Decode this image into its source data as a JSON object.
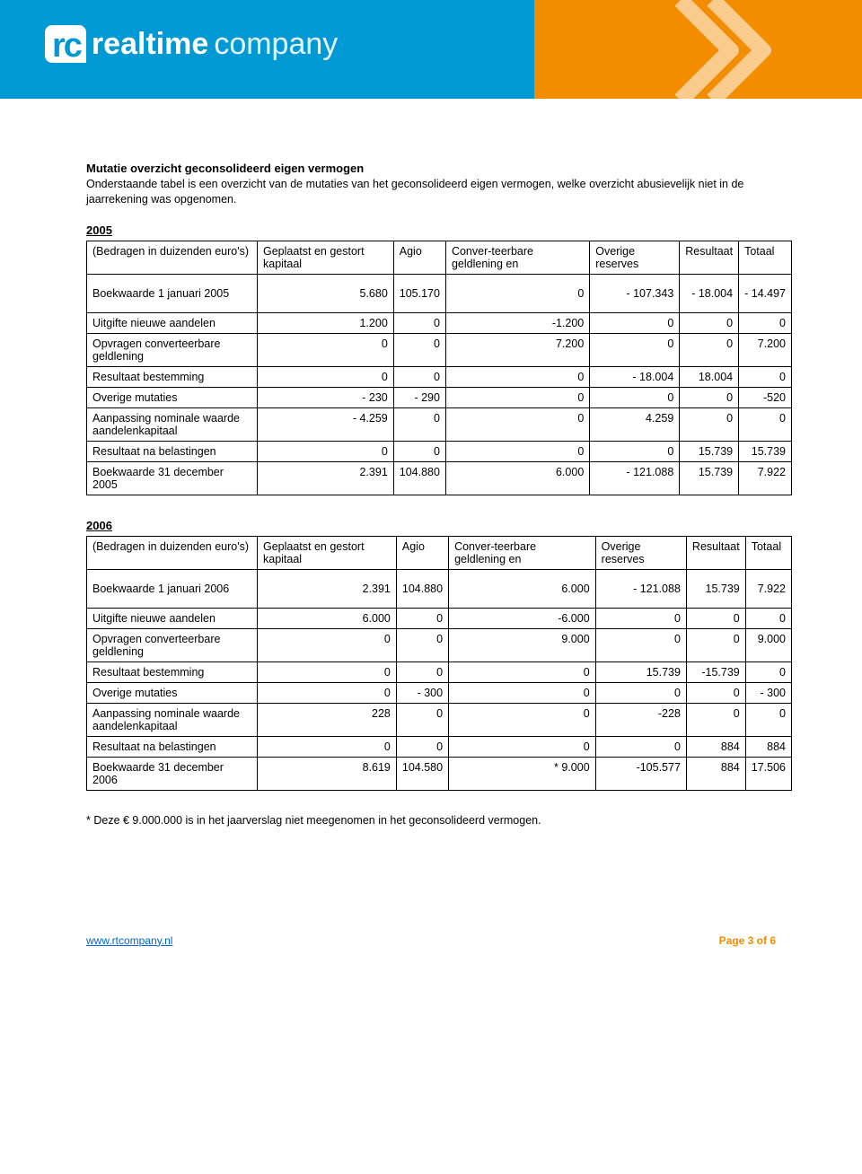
{
  "brand": {
    "prefix": "rc",
    "word1": "realtime",
    "word2": "company"
  },
  "title": "Mutatie overzicht geconsolideerd eigen vermogen",
  "intro": "Onderstaande tabel is een overzicht  van de mutaties van het geconsolideerd  eigen vermogen, welke overzicht abusievelijk niet in de jaarrekening was  opgenomen.",
  "columns": {
    "rowhead": "(Bedragen in duizenden euro's)",
    "c1": "Geplaatst en gestort kapitaal",
    "c2": "Agio",
    "c3": "Conver-teerbare geldlening en",
    "c4": "Overige reserves",
    "c5": "Resultaat",
    "c6": "Totaal"
  },
  "table2005": {
    "year": "2005",
    "rows": [
      {
        "label": "Boekwaarde 1 januari 2005",
        "v": [
          "5.680",
          "105.170",
          "0",
          "- 107.343",
          "- 18.004",
          "- 14.497"
        ],
        "pad": true
      },
      {
        "label": "Uitgifte nieuwe aandelen",
        "v": [
          "1.200",
          "0",
          "-1.200",
          "0",
          "0",
          "0"
        ]
      },
      {
        "label": "Opvragen converteerbare geldlening",
        "v": [
          "0",
          "0",
          "7.200",
          "0",
          "0",
          "7.200"
        ]
      },
      {
        "label": "Resultaat bestemming",
        "v": [
          "0",
          "0",
          "0",
          "- 18.004",
          "18.004",
          "0"
        ]
      },
      {
        "label": "Overige mutaties",
        "v": [
          "- 230",
          "- 290",
          "0",
          "0",
          "0",
          "-520"
        ]
      },
      {
        "label": "Aanpassing nominale waarde aandelenkapitaal",
        "v": [
          "- 4.259",
          "0",
          "0",
          "4.259",
          "0",
          "0"
        ]
      },
      {
        "label": "Resultaat na belastingen",
        "v": [
          "0",
          "0",
          "0",
          "0",
          "15.739",
          "15.739"
        ]
      },
      {
        "label": "Boekwaarde 31 december 2005",
        "v": [
          "2.391",
          "104.880",
          "6.000",
          "- 121.088",
          "15.739",
          "7.922"
        ]
      }
    ]
  },
  "table2006": {
    "year": "2006",
    "rows": [
      {
        "label": "Boekwaarde 1 januari 2006",
        "v": [
          "2.391",
          "104.880",
          "6.000",
          "- 121.088",
          "15.739",
          "7.922"
        ],
        "pad": true
      },
      {
        "label": "Uitgifte nieuwe aandelen",
        "v": [
          "6.000",
          "0",
          "-6.000",
          "0",
          "0",
          "0"
        ]
      },
      {
        "label": "Opvragen converteerbare geldlening",
        "v": [
          "0",
          "0",
          "9.000",
          "0",
          "0",
          "9.000"
        ]
      },
      {
        "label": "Resultaat bestemming",
        "v": [
          "0",
          "0",
          "0",
          "15.739",
          "-15.739",
          "0"
        ]
      },
      {
        "label": "Overige mutaties",
        "v": [
          "0",
          "- 300",
          "0",
          "0",
          "0",
          "- 300"
        ]
      },
      {
        "label": "Aanpassing nominale waarde aandelenkapitaal",
        "v": [
          "228",
          "0",
          "0",
          "-228",
          "0",
          "0"
        ]
      },
      {
        "label": "Resultaat na belastingen",
        "v": [
          "0",
          "0",
          "0",
          "0",
          "884",
          "884"
        ]
      },
      {
        "label": "Boekwaarde 31 december 2006",
        "v": [
          "8.619",
          "104.580",
          "*  9.000",
          "-105.577",
          "884",
          "17.506"
        ]
      }
    ]
  },
  "footnote": "* Deze € 9.000.000 is in het jaarverslag niet meegenomen in het geconsolideerd vermogen.",
  "footer": {
    "url": "www.rtcompany.nl",
    "page": "Page 3 of 6"
  },
  "colors": {
    "blue": "#0099d4",
    "orange": "#f28c00",
    "link": "#0066cc"
  }
}
